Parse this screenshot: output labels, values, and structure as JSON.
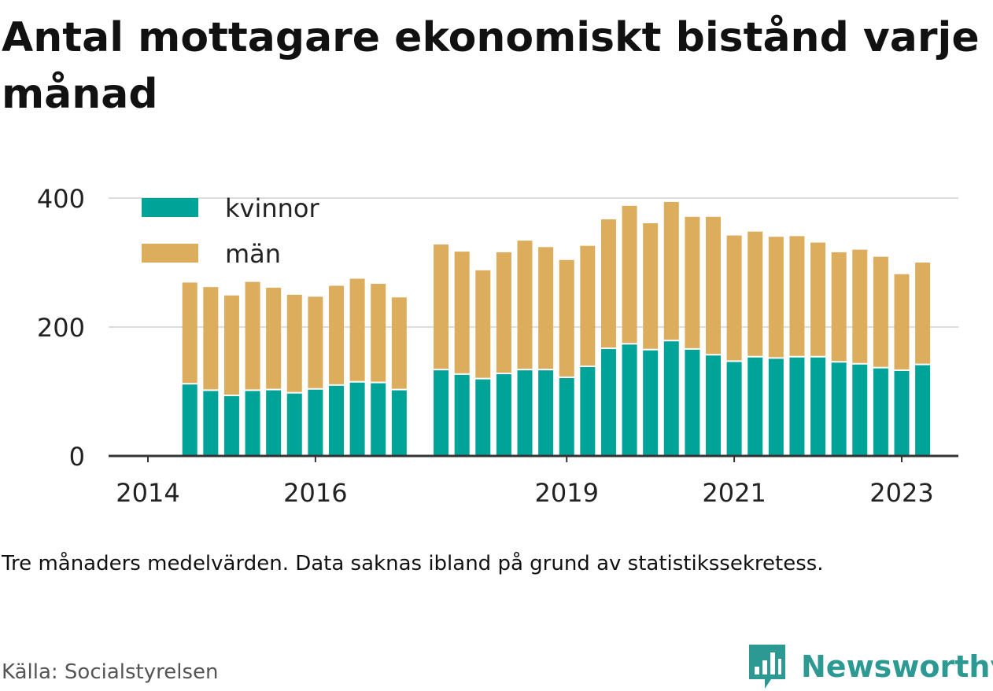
{
  "title": "Antal mottagare ekonomiskt bistånd varje månad",
  "caption": "Tre månaders medelvärden. Data saknas ibland på grund av statistikssekretess.",
  "source": "Källa: Socialstyrelsen",
  "brand": "Newsworthy",
  "colors": {
    "kvinnor": "#00a398",
    "man": "#dbad5c",
    "grid": "#dddddd",
    "axis": "#333333",
    "text": "#222222",
    "brand": "#2c9a92"
  },
  "chart_data": {
    "type": "bar",
    "stacked": true,
    "x_ticks": [
      "2014",
      "2016",
      "2019",
      "2021",
      "2023"
    ],
    "y_ticks": [
      "0",
      "200",
      "400"
    ],
    "ylim": [
      0,
      400
    ],
    "legend": {
      "position": "top-left",
      "items": [
        "kvinnor",
        "män"
      ]
    },
    "x": [
      "2014-07",
      "2014-10",
      "2015-01",
      "2015-04",
      "2015-07",
      "2015-10",
      "2016-01",
      "2016-04",
      "2016-07",
      "2016-10",
      "2017-01",
      "2017-07",
      "2017-10",
      "2018-01",
      "2018-04",
      "2018-07",
      "2018-10",
      "2019-01",
      "2019-04",
      "2019-07",
      "2019-10",
      "2020-01",
      "2020-04",
      "2020-07",
      "2020-10",
      "2021-01",
      "2021-04",
      "2021-07",
      "2021-10",
      "2022-01",
      "2022-04",
      "2022-07",
      "2022-10",
      "2023-01",
      "2023-04"
    ],
    "series": [
      {
        "name": "kvinnor",
        "values": [
          112,
          102,
          94,
          102,
          103,
          98,
          104,
          110,
          115,
          114,
          103,
          134,
          127,
          120,
          128,
          134,
          134,
          122,
          139,
          167,
          174,
          165,
          179,
          166,
          157,
          147,
          154,
          152,
          154,
          154,
          146,
          143,
          137,
          133,
          142
        ]
      },
      {
        "name": "män",
        "values": [
          157,
          160,
          155,
          168,
          158,
          152,
          143,
          154,
          160,
          153,
          143,
          194,
          190,
          168,
          188,
          200,
          190,
          182,
          187,
          200,
          214,
          196,
          215,
          205,
          214,
          195,
          194,
          188,
          187,
          177,
          170,
          177,
          172,
          149,
          158
        ]
      }
    ]
  }
}
